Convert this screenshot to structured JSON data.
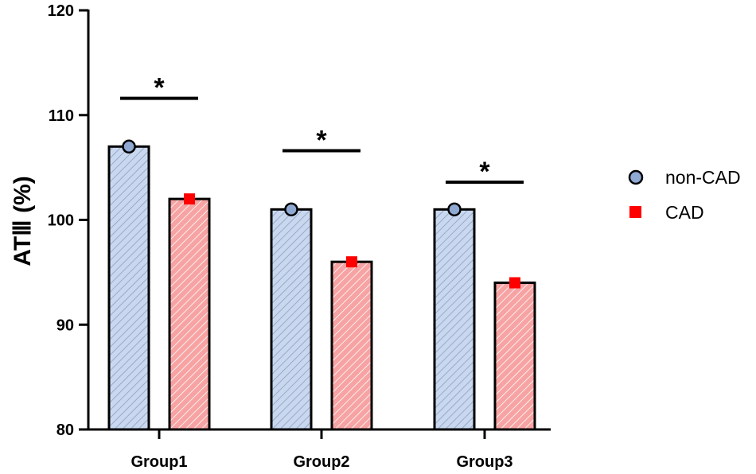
{
  "chart_data": {
    "type": "bar",
    "title": "",
    "xlabel": "",
    "ylabel": "ATⅢ (%)",
    "ylim": [
      80,
      120
    ],
    "yticks": [
      80,
      90,
      100,
      110,
      120
    ],
    "categories": [
      "Group1",
      "Group2",
      "Group3"
    ],
    "series": [
      {
        "name": "non-CAD",
        "values": [
          107,
          101,
          101
        ],
        "color": "#c9d8ef",
        "marker": "circle",
        "marker_color": "#8fa9d3"
      },
      {
        "name": "CAD",
        "values": [
          102,
          96,
          94
        ],
        "color": "#f7a3a3",
        "marker": "square",
        "marker_color": "#ff0000"
      }
    ],
    "significance": [
      {
        "category": "Group1",
        "label": "*",
        "bracket_y": 111.6
      },
      {
        "category": "Group2",
        "label": "*",
        "bracket_y": 106.6
      },
      {
        "category": "Group3",
        "label": "*",
        "bracket_y": 103.6
      }
    ],
    "grid": false,
    "legend": "right"
  }
}
